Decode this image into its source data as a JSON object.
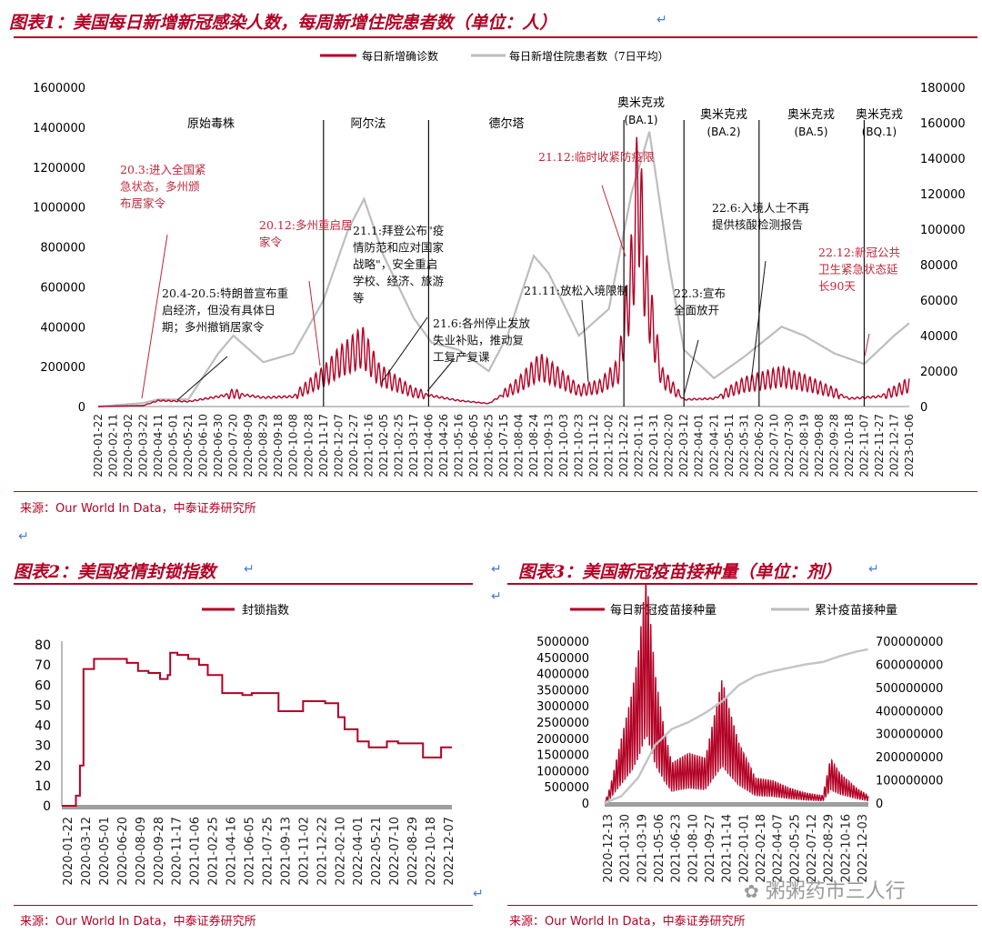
{
  "chart1": {
    "title": "图表1：美国每日新增新冠感染人数，每周新增住院患者数（单位：人）",
    "source": "来源：Our World In Data，中泰证券研究所",
    "legend": [
      "每日新增确诊数",
      "每日新增住院患者数（7日平均）"
    ],
    "colors": {
      "cases": "#b30024",
      "hosp": "#bdbdbd"
    },
    "variants": [
      {
        "name": "原始毒株",
        "sub": ""
      },
      {
        "name": "阿尔法",
        "sub": ""
      },
      {
        "name": "德尔塔",
        "sub": ""
      },
      {
        "name": "奥米克戎",
        "sub": "(BA.1)"
      },
      {
        "name": "奥米克戎",
        "sub": "(BA.2)"
      },
      {
        "name": "奥米克戎",
        "sub": "(BA.5)"
      },
      {
        "name": "奥米克戎",
        "sub": "(BQ.1)"
      }
    ],
    "annotations": [
      {
        "lines": [
          "20.3:进入全国紧",
          "急状态，多州颁",
          "布居家令"
        ],
        "color": "red"
      },
      {
        "lines": [
          "20.4-20.5:特朗普宣布重",
          "启经济，但没有具体日",
          "期；多州撤销居家令"
        ],
        "color": "black"
      },
      {
        "lines": [
          "20.12:多州重启居",
          "家令"
        ],
        "color": "red"
      },
      {
        "lines": [
          "21.1:拜登公布\"疫",
          "情防范和应对国家",
          "战略\"，安全重启",
          "学校、经济、旅游",
          "等"
        ],
        "color": "black"
      },
      {
        "lines": [
          "21.6:各州停止发放",
          "失业补贴，推动复",
          "工复产复课"
        ],
        "color": "black"
      },
      {
        "lines": [
          "21.11:放松入境限制"
        ],
        "color": "black"
      },
      {
        "lines": [
          "21.12:临时收紧防疫限"
        ],
        "color": "red"
      },
      {
        "lines": [
          "22.3:宣布",
          "全面放开"
        ],
        "color": "black"
      },
      {
        "lines": [
          "22.6:入境人士不再",
          "提供核酸检测报告"
        ],
        "color": "black"
      },
      {
        "lines": [
          "22.12:新冠公共",
          "卫生紧急状态延",
          "长90天"
        ],
        "color": "red"
      }
    ],
    "y_left_ticks": [
      "1600000",
      "1400000",
      "1200000",
      "1000000",
      "800000",
      "600000",
      "400000",
      "200000",
      "0"
    ],
    "y_right_ticks": [
      "180000",
      "160000",
      "140000",
      "120000",
      "100000",
      "80000",
      "60000",
      "40000",
      "20000",
      "0"
    ],
    "x_ticks": [
      "2020-01-22",
      "2020-02-11",
      "2020-03-02",
      "2020-03-22",
      "2020-04-11",
      "2020-05-01",
      "2020-05-21",
      "2020-06-10",
      "2020-06-30",
      "2020-07-20",
      "2020-08-09",
      "2020-08-29",
      "2020-09-18",
      "2020-10-08",
      "2020-10-28",
      "2020-11-17",
      "2020-12-07",
      "2020-12-27",
      "2021-01-16",
      "2021-02-05",
      "2021-02-25",
      "2021-03-17",
      "2021-04-06",
      "2021-04-26",
      "2021-05-16",
      "2021-06-05",
      "2021-06-25",
      "2021-07-15",
      "2021-08-04",
      "2021-08-24",
      "2021-09-13",
      "2021-10-03",
      "2021-10-23",
      "2021-11-12",
      "2021-12-02",
      "2021-12-22",
      "2022-01-11",
      "2022-01-31",
      "2022-02-20",
      "2022-03-12",
      "2022-04-01",
      "2022-04-21",
      "2022-05-11",
      "2022-05-31",
      "2022-06-20",
      "2022-07-10",
      "2022-07-30",
      "2022-08-19",
      "2022-09-08",
      "2022-09-28",
      "2022-10-18",
      "2022-11-07",
      "2022-11-27",
      "2022-12-17",
      "2023-01-06"
    ]
  },
  "chart2": {
    "title": "图表2：美国疫情封锁指数",
    "source": "来源：Our World In Data，中泰证券研究所",
    "legend": "封锁指数",
    "y_ticks": [
      "80",
      "70",
      "60",
      "50",
      "40",
      "30",
      "20",
      "10",
      "0"
    ],
    "x_ticks": [
      "2020-01-22",
      "2020-03-12",
      "2020-05-01",
      "2020-06-20",
      "2020-08-09",
      "2020-09-28",
      "2020-11-17",
      "2021-01-06",
      "2021-02-25",
      "2021-04-16",
      "2021-06-05",
      "2021-07-25",
      "2021-09-13",
      "2021-11-02",
      "2021-12-22",
      "2022-02-10",
      "2022-04-01",
      "2022-05-21",
      "2022-07-10",
      "2022-08-29",
      "2022-10-18",
      "2022-12-07"
    ]
  },
  "chart3": {
    "title": "图表3：美国新冠疫苗接种量（单位：剂）",
    "source": "来源：Our World In Data，中泰证券研究所",
    "legend": [
      "每日新冠疫苗接种量",
      "累计疫苗接种量"
    ],
    "y_left_ticks": [
      "5000000",
      "4500000",
      "4000000",
      "3500000",
      "3000000",
      "2500000",
      "2000000",
      "1500000",
      "1000000",
      "500000",
      "0"
    ],
    "y_right_ticks": [
      "700000000",
      "600000000",
      "500000000",
      "400000000",
      "300000000",
      "200000000",
      "100000000",
      "0"
    ],
    "x_ticks": [
      "2020-12-13",
      "2021-01-30",
      "2021-03-19",
      "2021-05-06",
      "2021-06-23",
      "2021-08-10",
      "2021-09-27",
      "2021-11-14",
      "2022-01-01",
      "2022-02-18",
      "2022-04-07",
      "2022-05-25",
      "2022-07-12",
      "2022-08-29",
      "2022-10-16",
      "2022-12-03"
    ]
  },
  "watermark": "粥粥药市三人行",
  "chart_data": [
    {
      "type": "line",
      "title": "美国每日新增新冠感染人数，每周新增住院患者数（单位：人）",
      "x_range": [
        "2020-01-22",
        "2023-01-06"
      ],
      "ylim": [
        0,
        1600000
      ],
      "y2lim": [
        0,
        180000
      ],
      "series": [
        {
          "name": "每日新增确诊数",
          "axis": "left",
          "x": [
            "2020-01-22",
            "2020-03-22",
            "2020-04-11",
            "2020-05-21",
            "2020-06-30",
            "2020-07-20",
            "2020-08-29",
            "2020-10-08",
            "2020-11-17",
            "2020-12-07",
            "2021-01-08",
            "2021-01-30",
            "2021-03-17",
            "2021-05-16",
            "2021-06-25",
            "2021-08-04",
            "2021-09-01",
            "2021-09-20",
            "2021-10-23",
            "2021-11-20",
            "2021-12-15",
            "2022-01-03",
            "2022-01-10",
            "2022-01-20",
            "2022-02-10",
            "2022-03-12",
            "2022-04-21",
            "2022-05-31",
            "2022-07-20",
            "2022-08-19",
            "2022-09-28",
            "2022-10-18",
            "2022-11-27",
            "2022-12-20",
            "2023-01-06"
          ],
          "values": [
            0,
            5000,
            30000,
            25000,
            50000,
            65000,
            45000,
            50000,
            150000,
            220000,
            300000,
            160000,
            70000,
            30000,
            15000,
            110000,
            200000,
            160000,
            80000,
            100000,
            180000,
            700000,
            1130000,
            600000,
            150000,
            35000,
            40000,
            110000,
            150000,
            120000,
            70000,
            40000,
            50000,
            80000,
            110000
          ]
        },
        {
          "name": "每日新增住院患者数（7日平均）",
          "axis": "right",
          "x": [
            "2020-01-22",
            "2020-03-22",
            "2020-04-11",
            "2020-05-21",
            "2020-06-30",
            "2020-07-20",
            "2020-08-29",
            "2020-10-08",
            "2020-11-17",
            "2020-12-20",
            "2021-01-10",
            "2021-02-05",
            "2021-03-17",
            "2021-04-10",
            "2021-05-16",
            "2021-06-25",
            "2021-07-20",
            "2021-08-24",
            "2021-09-13",
            "2021-10-23",
            "2021-12-02",
            "2022-01-01",
            "2022-01-25",
            "2022-02-20",
            "2022-03-12",
            "2022-04-21",
            "2022-05-31",
            "2022-07-20",
            "2022-08-19",
            "2022-09-28",
            "2022-11-07",
            "2022-12-17",
            "2023-01-06"
          ],
          "values": [
            0,
            2000,
            4000,
            4000,
            30000,
            40000,
            25000,
            30000,
            60000,
            100000,
            117000,
            85000,
            50000,
            36000,
            32000,
            20000,
            40000,
            85000,
            75000,
            40000,
            55000,
            120000,
            155000,
            80000,
            32000,
            16000,
            28000,
            45000,
            40000,
            30000,
            24000,
            40000,
            47000
          ]
        }
      ],
      "variant_markers": [
        "2020-11-17",
        "2021-04-06",
        "2021-12-22",
        "2022-03-12",
        "2022-06-20",
        "2022-11-07"
      ]
    },
    {
      "type": "line",
      "title": "美国疫情封锁指数",
      "ylim": [
        0,
        80
      ],
      "series": [
        {
          "name": "封锁指数",
          "x": [
            "2020-01-22",
            "2020-02-05",
            "2020-03-01",
            "2020-03-12",
            "2020-03-22",
            "2020-04-20",
            "2020-07-20",
            "2020-08-20",
            "2020-09-18",
            "2020-10-20",
            "2020-11-10",
            "2020-11-17",
            "2020-12-07",
            "2021-01-06",
            "2021-02-05",
            "2021-03-01",
            "2021-04-10",
            "2021-06-05",
            "2021-07-01",
            "2021-09-13",
            "2021-11-20",
            "2022-01-20",
            "2022-02-25",
            "2022-03-15",
            "2022-04-20",
            "2022-05-21",
            "2022-07-10",
            "2022-08-10",
            "2022-10-18",
            "2022-12-07",
            "2023-01-06"
          ],
          "values": [
            0,
            0,
            5,
            20,
            68,
            73,
            71,
            67,
            66,
            63,
            65,
            76,
            75,
            73,
            70,
            65,
            56,
            55,
            56,
            47,
            52,
            51,
            44,
            38,
            32,
            29,
            32,
            31,
            24,
            29,
            29
          ]
        }
      ]
    },
    {
      "type": "line",
      "title": "美国新冠疫苗接种量（单位：剂）",
      "ylim": [
        0,
        5000000
      ],
      "y2lim": [
        0,
        700000000
      ],
      "series": [
        {
          "name": "每日新冠疫苗接种量",
          "axis": "left",
          "x": [
            "2020-12-13",
            "2020-12-28",
            "2021-01-30",
            "2021-03-01",
            "2021-03-19",
            "2021-04-11",
            "2021-05-06",
            "2021-06-01",
            "2021-06-23",
            "2021-08-10",
            "2021-09-27",
            "2021-11-14",
            "2021-11-30",
            "2022-01-01",
            "2022-02-18",
            "2022-04-07",
            "2022-05-25",
            "2022-07-12",
            "2022-08-29",
            "2022-09-20",
            "2022-10-16",
            "2022-12-03",
            "2023-01-06"
          ],
          "values": [
            0,
            300000,
            1300000,
            2200000,
            3000000,
            4600000,
            2600000,
            1500000,
            800000,
            1000000,
            900000,
            2500000,
            2000000,
            1200000,
            500000,
            450000,
            300000,
            200000,
            150000,
            900000,
            600000,
            300000,
            150000
          ]
        },
        {
          "name": "累计疫苗接种量",
          "axis": "right",
          "x": [
            "2020-12-13",
            "2021-01-30",
            "2021-03-19",
            "2021-05-06",
            "2021-06-23",
            "2021-08-10",
            "2021-09-27",
            "2021-11-14",
            "2022-01-01",
            "2022-02-18",
            "2022-04-07",
            "2022-05-25",
            "2022-07-12",
            "2022-08-29",
            "2022-10-16",
            "2022-12-03",
            "2023-01-06"
          ],
          "values": [
            0,
            30000000,
            110000000,
            250000000,
            320000000,
            350000000,
            390000000,
            440000000,
            510000000,
            550000000,
            570000000,
            585000000,
            600000000,
            610000000,
            635000000,
            655000000,
            665000000
          ]
        }
      ]
    }
  ]
}
